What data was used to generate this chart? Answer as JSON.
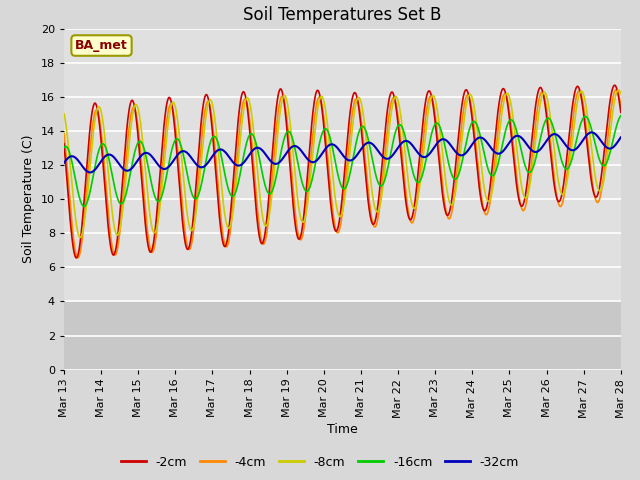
{
  "title": "Soil Temperatures Set B",
  "xlabel": "Time",
  "ylabel": "Soil Temperature (C)",
  "annotation": "BA_met",
  "ylim": [
    0,
    20
  ],
  "xlim": [
    0,
    360
  ],
  "yticks": [
    0,
    2,
    4,
    6,
    8,
    10,
    12,
    14,
    16,
    18,
    20
  ],
  "xtick_labels": [
    "Mar 13",
    "Mar 14",
    "Mar 15",
    "Mar 16",
    "Mar 17",
    "Mar 18",
    "Mar 19",
    "Mar 20",
    "Mar 21",
    "Mar 22",
    "Mar 23",
    "Mar 24",
    "Mar 25",
    "Mar 26",
    "Mar 27",
    "Mar 28"
  ],
  "xtick_positions": [
    0,
    24,
    48,
    72,
    96,
    120,
    144,
    168,
    192,
    216,
    240,
    264,
    288,
    312,
    336,
    360
  ],
  "series_colors": [
    "#cc0000",
    "#ff8800",
    "#cccc00",
    "#00cc00",
    "#0000bb"
  ],
  "series_labels": [
    "-2cm",
    "-4cm",
    "-8cm",
    "-16cm",
    "-32cm"
  ],
  "fig_bg_color": "#d8d8d8",
  "plot_bg_color": "#e0e0e0",
  "plot_bg_upper": "#e0e0e0",
  "plot_bg_lower": "#c8c8c8",
  "grid_color": "#ffffff",
  "title_fontsize": 12,
  "axis_fontsize": 9,
  "tick_fontsize": 8,
  "legend_fontsize": 9
}
